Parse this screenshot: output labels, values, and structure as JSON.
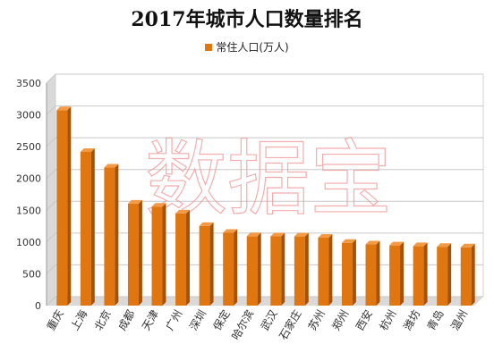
{
  "colors": {
    "bar": "#e0760f",
    "bar_side": "#a65206",
    "bar_top": "#f39a46",
    "grid": "#c8c8c8",
    "wall": "#eeeeee",
    "floor": "#d9d9d9",
    "watermark": "#f0a0a0"
  },
  "watermark_text": "数据宝",
  "chart_data": {
    "type": "bar",
    "title": "2017年城市人口数量排名",
    "legend_position": "top",
    "grid": true,
    "ylim": [
      0,
      3500
    ],
    "yticks": [
      0,
      500,
      1000,
      1500,
      2000,
      2500,
      3000,
      3500
    ],
    "categories": [
      "重庆",
      "上海",
      "北京",
      "成都",
      "天津",
      "广州",
      "深圳",
      "保定",
      "哈尔滨",
      "武汉",
      "石家庄",
      "苏州",
      "郑州",
      "西安",
      "杭州",
      "潍坊",
      "青岛",
      "温州"
    ],
    "series": [
      {
        "name": "常住人口(万人)",
        "values": [
          3075,
          2418,
          2171,
          1604,
          1557,
          1450,
          1253,
          1146,
          1092,
          1089,
          1088,
          1068,
          988,
          962,
          947,
          936,
          925,
          917
        ]
      }
    ]
  }
}
